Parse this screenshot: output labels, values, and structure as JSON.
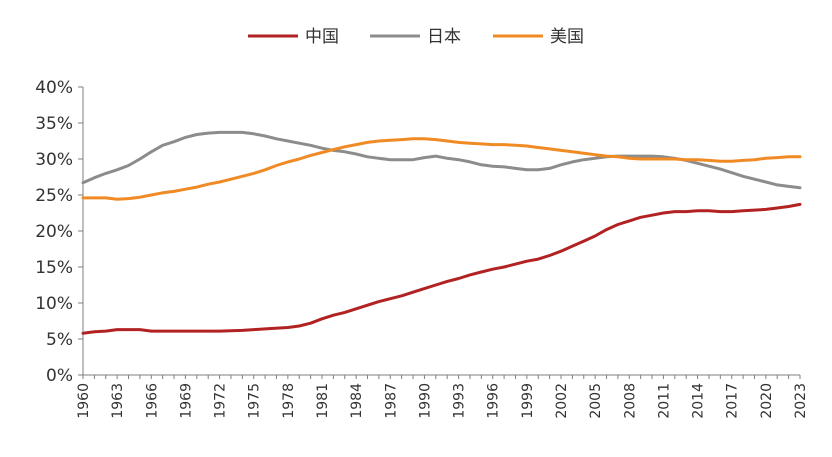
{
  "chart_data": {
    "type": "line",
    "title": "",
    "xlabel": "",
    "ylabel": "",
    "ylim": [
      0,
      40
    ],
    "xlim": [
      1960,
      2023
    ],
    "y_ticks": [
      "0%",
      "5%",
      "10%",
      "15%",
      "20%",
      "25%",
      "30%",
      "35%",
      "40%"
    ],
    "y_tick_values": [
      0,
      5,
      10,
      15,
      20,
      25,
      30,
      35,
      40
    ],
    "x_ticks": [
      "1960",
      "1963",
      "1966",
      "1969",
      "1972",
      "1975",
      "1978",
      "1981",
      "1984",
      "1987",
      "1990",
      "1993",
      "1996",
      "1999",
      "2002",
      "2005",
      "2008",
      "2011",
      "2014",
      "2017",
      "2020",
      "2023"
    ],
    "grid": false,
    "legend_position": "top-center",
    "series": [
      {
        "name": "中国",
        "color": "#b22222",
        "points": [
          [
            1960,
            5.8
          ],
          [
            1961,
            6.0
          ],
          [
            1962,
            6.1
          ],
          [
            1963,
            6.3
          ],
          [
            1964,
            6.3
          ],
          [
            1965,
            6.3
          ],
          [
            1966,
            6.1
          ],
          [
            1968,
            6.1
          ],
          [
            1970,
            6.1
          ],
          [
            1972,
            6.1
          ],
          [
            1974,
            6.2
          ],
          [
            1975,
            6.3
          ],
          [
            1976,
            6.4
          ],
          [
            1978,
            6.6
          ],
          [
            1979,
            6.8
          ],
          [
            1980,
            7.2
          ],
          [
            1981,
            7.8
          ],
          [
            1982,
            8.3
          ],
          [
            1983,
            8.7
          ],
          [
            1984,
            9.2
          ],
          [
            1985,
            9.7
          ],
          [
            1986,
            10.2
          ],
          [
            1987,
            10.6
          ],
          [
            1988,
            11.0
          ],
          [
            1989,
            11.5
          ],
          [
            1990,
            12.0
          ],
          [
            1991,
            12.5
          ],
          [
            1992,
            13.0
          ],
          [
            1993,
            13.4
          ],
          [
            1994,
            13.9
          ],
          [
            1995,
            14.3
          ],
          [
            1996,
            14.7
          ],
          [
            1997,
            15.0
          ],
          [
            1998,
            15.4
          ],
          [
            1999,
            15.8
          ],
          [
            2000,
            16.1
          ],
          [
            2001,
            16.6
          ],
          [
            2002,
            17.2
          ],
          [
            2003,
            17.9
          ],
          [
            2004,
            18.6
          ],
          [
            2005,
            19.3
          ],
          [
            2006,
            20.2
          ],
          [
            2007,
            20.9
          ],
          [
            2008,
            21.4
          ],
          [
            2009,
            21.9
          ],
          [
            2010,
            22.2
          ],
          [
            2011,
            22.5
          ],
          [
            2012,
            22.7
          ],
          [
            2013,
            22.7
          ],
          [
            2014,
            22.8
          ],
          [
            2015,
            22.8
          ],
          [
            2016,
            22.7
          ],
          [
            2017,
            22.7
          ],
          [
            2018,
            22.8
          ],
          [
            2019,
            22.9
          ],
          [
            2020,
            23.0
          ],
          [
            2021,
            23.2
          ],
          [
            2022,
            23.4
          ],
          [
            2023,
            23.7
          ]
        ]
      },
      {
        "name": "日本",
        "color": "#8c8c8c",
        "points": [
          [
            1960,
            26.7
          ],
          [
            1961,
            27.4
          ],
          [
            1962,
            28.0
          ],
          [
            1963,
            28.5
          ],
          [
            1964,
            29.1
          ],
          [
            1965,
            30.0
          ],
          [
            1966,
            31.0
          ],
          [
            1967,
            31.9
          ],
          [
            1968,
            32.4
          ],
          [
            1969,
            33.0
          ],
          [
            1970,
            33.4
          ],
          [
            1971,
            33.6
          ],
          [
            1972,
            33.7
          ],
          [
            1974,
            33.7
          ],
          [
            1975,
            33.5
          ],
          [
            1976,
            33.2
          ],
          [
            1977,
            32.8
          ],
          [
            1978,
            32.5
          ],
          [
            1979,
            32.2
          ],
          [
            1980,
            31.9
          ],
          [
            1981,
            31.5
          ],
          [
            1982,
            31.2
          ],
          [
            1983,
            31.0
          ],
          [
            1984,
            30.7
          ],
          [
            1985,
            30.3
          ],
          [
            1986,
            30.1
          ],
          [
            1987,
            29.9
          ],
          [
            1988,
            29.9
          ],
          [
            1989,
            29.9
          ],
          [
            1990,
            30.2
          ],
          [
            1991,
            30.4
          ],
          [
            1992,
            30.1
          ],
          [
            1993,
            29.9
          ],
          [
            1994,
            29.6
          ],
          [
            1995,
            29.2
          ],
          [
            1996,
            29.0
          ],
          [
            1997,
            28.9
          ],
          [
            1998,
            28.7
          ],
          [
            1999,
            28.5
          ],
          [
            2000,
            28.5
          ],
          [
            2001,
            28.7
          ],
          [
            2002,
            29.2
          ],
          [
            2003,
            29.6
          ],
          [
            2004,
            29.9
          ],
          [
            2005,
            30.1
          ],
          [
            2006,
            30.3
          ],
          [
            2007,
            30.4
          ],
          [
            2008,
            30.4
          ],
          [
            2009,
            30.4
          ],
          [
            2010,
            30.4
          ],
          [
            2011,
            30.3
          ],
          [
            2012,
            30.1
          ],
          [
            2013,
            29.8
          ],
          [
            2014,
            29.4
          ],
          [
            2015,
            29.0
          ],
          [
            2016,
            28.6
          ],
          [
            2017,
            28.1
          ],
          [
            2018,
            27.6
          ],
          [
            2019,
            27.2
          ],
          [
            2020,
            26.8
          ],
          [
            2021,
            26.4
          ],
          [
            2022,
            26.2
          ],
          [
            2023,
            26.0
          ]
        ]
      },
      {
        "name": "美国",
        "color": "#f08a24",
        "points": [
          [
            1960,
            24.6
          ],
          [
            1961,
            24.6
          ],
          [
            1962,
            24.6
          ],
          [
            1963,
            24.4
          ],
          [
            1964,
            24.5
          ],
          [
            1965,
            24.7
          ],
          [
            1966,
            25.0
          ],
          [
            1967,
            25.3
          ],
          [
            1968,
            25.5
          ],
          [
            1969,
            25.8
          ],
          [
            1970,
            26.1
          ],
          [
            1971,
            26.5
          ],
          [
            1972,
            26.8
          ],
          [
            1973,
            27.2
          ],
          [
            1974,
            27.6
          ],
          [
            1975,
            28.0
          ],
          [
            1976,
            28.5
          ],
          [
            1977,
            29.1
          ],
          [
            1978,
            29.6
          ],
          [
            1979,
            30.0
          ],
          [
            1980,
            30.5
          ],
          [
            1981,
            30.9
          ],
          [
            1982,
            31.3
          ],
          [
            1983,
            31.7
          ],
          [
            1984,
            32.0
          ],
          [
            1985,
            32.3
          ],
          [
            1986,
            32.5
          ],
          [
            1987,
            32.6
          ],
          [
            1988,
            32.7
          ],
          [
            1989,
            32.8
          ],
          [
            1990,
            32.8
          ],
          [
            1991,
            32.7
          ],
          [
            1992,
            32.5
          ],
          [
            1993,
            32.3
          ],
          [
            1994,
            32.2
          ],
          [
            1995,
            32.1
          ],
          [
            1996,
            32.0
          ],
          [
            1997,
            32.0
          ],
          [
            1998,
            31.9
          ],
          [
            1999,
            31.8
          ],
          [
            2000,
            31.6
          ],
          [
            2001,
            31.4
          ],
          [
            2002,
            31.2
          ],
          [
            2003,
            31.0
          ],
          [
            2004,
            30.8
          ],
          [
            2005,
            30.6
          ],
          [
            2006,
            30.4
          ],
          [
            2007,
            30.3
          ],
          [
            2008,
            30.1
          ],
          [
            2009,
            30.0
          ],
          [
            2010,
            30.0
          ],
          [
            2011,
            30.0
          ],
          [
            2012,
            30.0
          ],
          [
            2013,
            29.9
          ],
          [
            2014,
            29.9
          ],
          [
            2015,
            29.8
          ],
          [
            2016,
            29.7
          ],
          [
            2017,
            29.7
          ],
          [
            2018,
            29.8
          ],
          [
            2019,
            29.9
          ],
          [
            2020,
            30.1
          ],
          [
            2021,
            30.2
          ],
          [
            2022,
            30.3
          ],
          [
            2023,
            30.3
          ]
        ]
      }
    ]
  }
}
